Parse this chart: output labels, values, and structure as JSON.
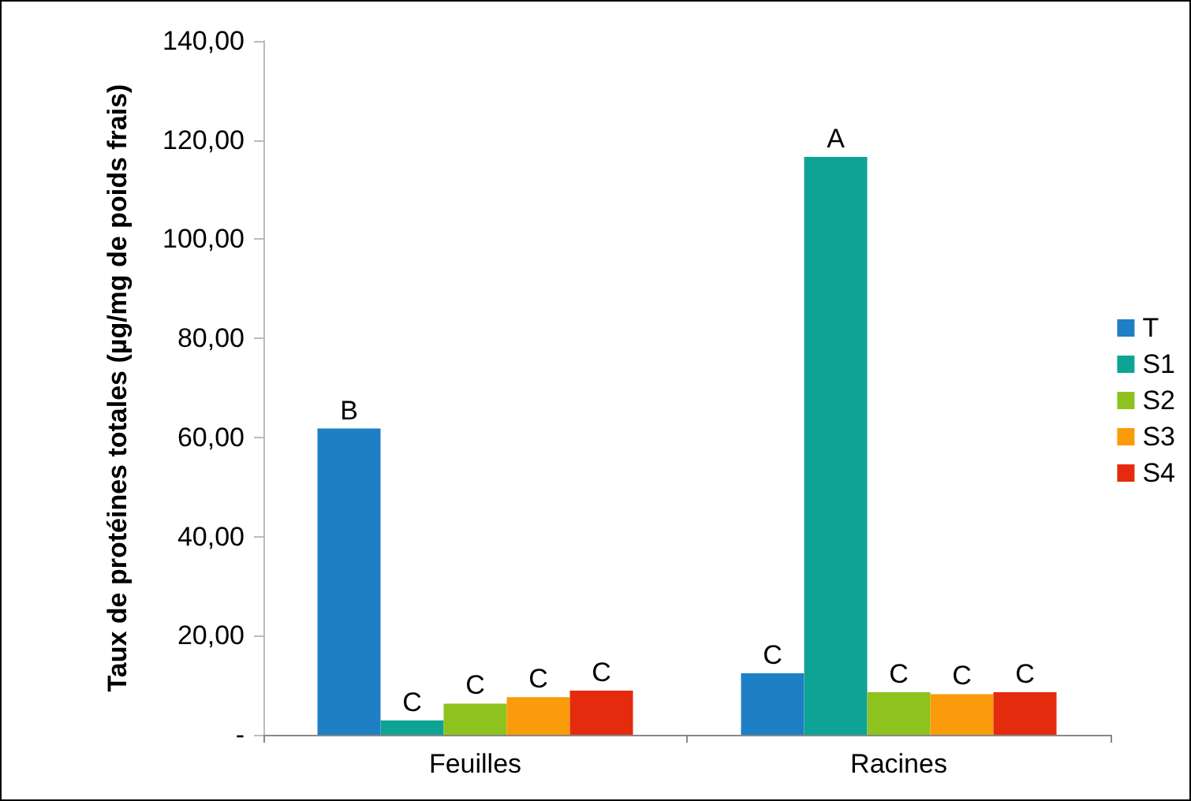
{
  "chart_data": {
    "type": "bar",
    "ylabel": "Taux de protéines totales (µg/mg de poids frais)",
    "categories": [
      "Feuilles",
      "Racines"
    ],
    "series": [
      {
        "name": "T",
        "color": "#1f7fc4",
        "values": [
          61.8,
          12.4
        ],
        "value_labels": [
          "B",
          "C"
        ]
      },
      {
        "name": "S1",
        "color": "#0fa396",
        "values": [
          2.9,
          116.6
        ],
        "value_labels": [
          "C",
          "A"
        ]
      },
      {
        "name": "S2",
        "color": "#8dc21f",
        "values": [
          6.3,
          8.6
        ],
        "value_labels": [
          "C",
          "C"
        ]
      },
      {
        "name": "S3",
        "color": "#f99b0a",
        "values": [
          7.6,
          8.2
        ],
        "value_labels": [
          "C",
          "C"
        ]
      },
      {
        "name": "S4",
        "color": "#e52b0d",
        "values": [
          8.9,
          8.6
        ],
        "value_labels": [
          "C",
          "C"
        ]
      }
    ],
    "ylim": [
      0,
      140
    ],
    "yticks": [
      {
        "value": 0,
        "label": "-"
      },
      {
        "value": 20,
        "label": "20,00"
      },
      {
        "value": 40,
        "label": "40,00"
      },
      {
        "value": 60,
        "label": "60,00"
      },
      {
        "value": 80,
        "label": "80,00"
      },
      {
        "value": 100,
        "label": "100,00"
      },
      {
        "value": 120,
        "label": "120,00"
      },
      {
        "value": 140,
        "label": "140,00"
      }
    ],
    "grid": false,
    "legend": "right"
  }
}
